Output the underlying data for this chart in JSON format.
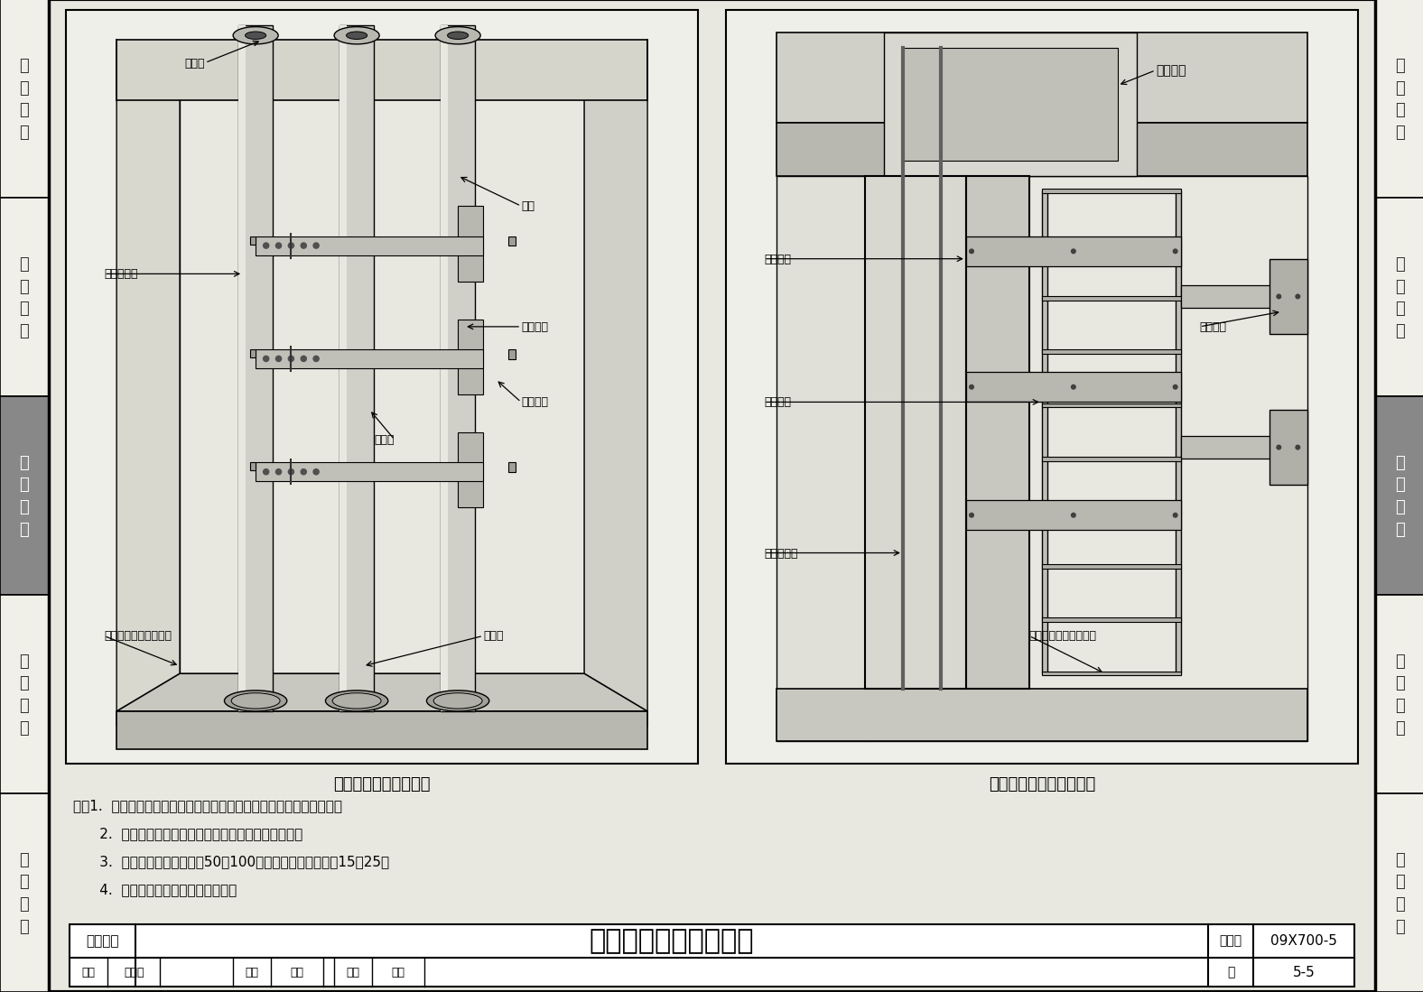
{
  "page_bg": "#e8e8e0",
  "content_bg": "#f0f0e8",
  "border_color": "#000000",
  "title_main": "室内缆线垂直敷设示意",
  "subtitle_left": "预埋管垂直布线示意图",
  "subtitle_right": "预留孔洞垂直布线示意图",
  "figure_number": "09X700-5",
  "page_number": "5-5",
  "sidebar_items": [
    "机\n房\n工\n程",
    "供\n电\n电\n源",
    "缆\n线\n敷\n设",
    "设\n备\n安\n装",
    "防\n雷\n接\n地"
  ],
  "sidebar_active_index": 2,
  "sidebar_active_color": "#888888",
  "sidebar_inactive_color": "#f0f0e8",
  "notes": [
    "注：1.  弱电系统缆线的垂直敷设一般在坚井、电信间或弱电间内完成。",
    "      2.  预埋管的管径和预留孔洞的尺寸由工程设计确定。",
    "      3.  预埋管在楼板上侧高出50～100防水，在楼板下侧露出15～25。",
    "      4.  预埋管和预留孔洞应上下对齐。"
  ]
}
